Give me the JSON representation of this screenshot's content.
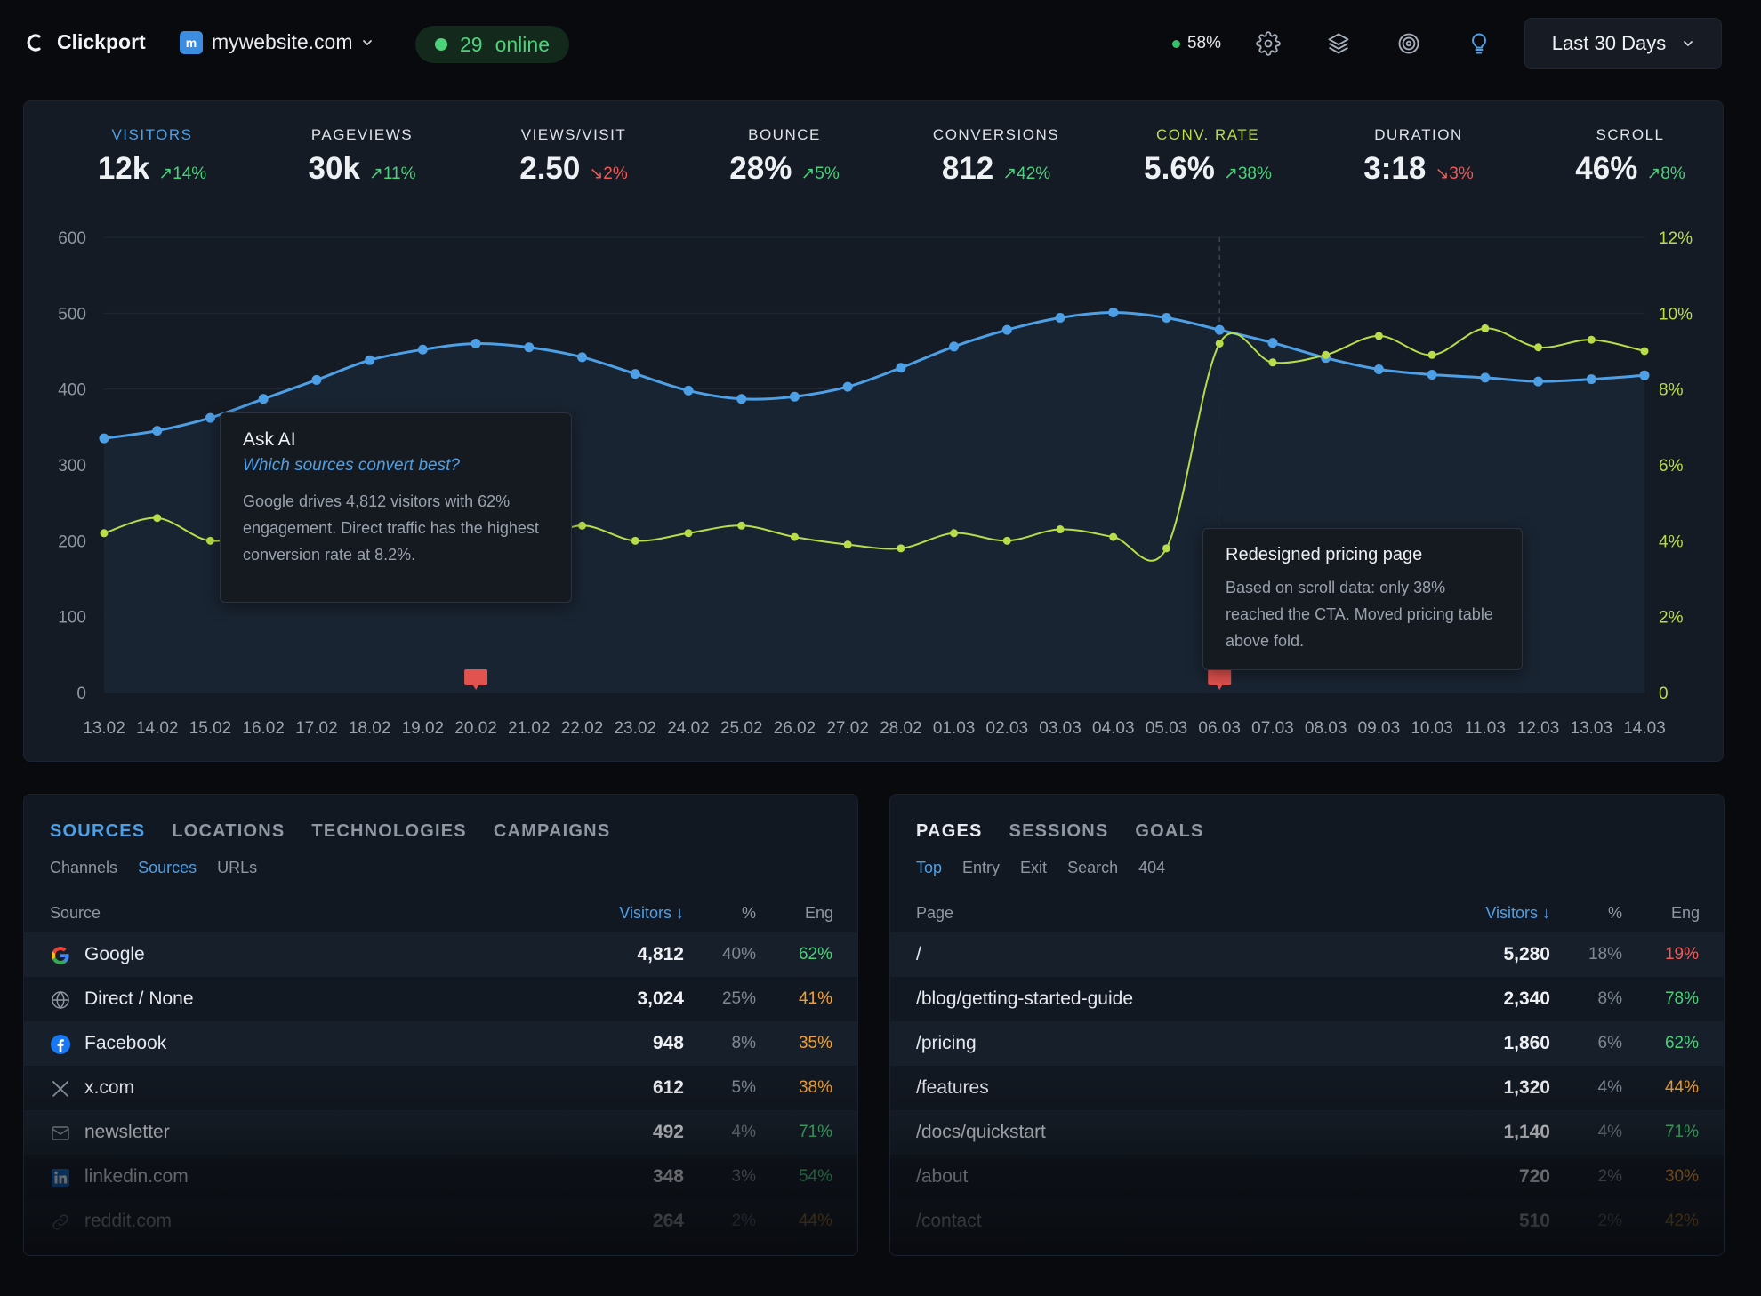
{
  "header": {
    "brand": "Clickport",
    "site": {
      "favicon_letter": "m",
      "name": "mywebsite.com"
    },
    "online": {
      "count": "29",
      "label": "online"
    },
    "indicator_pct": "58%",
    "icons": [
      "gear-icon",
      "layers-icon",
      "target-icon",
      "lightbulb-icon"
    ],
    "date_range": "Last 30 Days"
  },
  "metrics": [
    {
      "label": "VISITORS",
      "value": "12k",
      "delta": "↗14%",
      "trend": "up"
    },
    {
      "label": "PAGEVIEWS",
      "value": "30k",
      "delta": "↗11%",
      "trend": "up"
    },
    {
      "label": "VIEWS/VISIT",
      "value": "2.50",
      "delta": "↘2%",
      "trend": "down"
    },
    {
      "label": "BOUNCE",
      "value": "28%",
      "delta": "↗5%",
      "trend": "up"
    },
    {
      "label": "CONVERSIONS",
      "value": "812",
      "delta": "↗42%",
      "trend": "up"
    },
    {
      "label": "CONV. RATE",
      "value": "5.6%",
      "delta": "↗38%",
      "trend": "up"
    },
    {
      "label": "DURATION",
      "value": "3:18",
      "delta": "↘3%",
      "trend": "down"
    },
    {
      "label": "SCROLL",
      "value": "46%",
      "delta": "↗8%",
      "trend": "up"
    }
  ],
  "chart_data": {
    "type": "line",
    "x": [
      "13.02",
      "14.02",
      "15.02",
      "16.02",
      "17.02",
      "18.02",
      "19.02",
      "20.02",
      "21.02",
      "22.02",
      "23.02",
      "24.02",
      "25.02",
      "26.02",
      "27.02",
      "28.02",
      "01.03",
      "02.03",
      "03.03",
      "04.03",
      "05.03",
      "06.03",
      "07.03",
      "08.03",
      "09.03",
      "10.03",
      "11.03",
      "12.03",
      "13.03",
      "14.03"
    ],
    "y_left": {
      "ticks": [
        "0",
        "100",
        "200",
        "300",
        "400",
        "500",
        "600"
      ],
      "range": [
        0,
        600
      ]
    },
    "y_right": {
      "ticks": [
        "0",
        "2%",
        "4%",
        "6%",
        "8%",
        "10%",
        "12%"
      ],
      "range": [
        0,
        12
      ]
    },
    "series": [
      {
        "axis": "left",
        "color": "#4d9fe6",
        "values": [
          335,
          345,
          362,
          387,
          412,
          438,
          452,
          460,
          455,
          442,
          420,
          398,
          387,
          390,
          403,
          428,
          456,
          478,
          494,
          501,
          494,
          478,
          461,
          441,
          426,
          419,
          415,
          410,
          413,
          418
        ]
      },
      {
        "axis": "right",
        "color": "#b9dd49",
        "values": [
          4.2,
          4.6,
          4.0,
          4.3,
          4.9,
          4.6,
          4.8,
          4.4,
          4.0,
          4.4,
          4.0,
          4.2,
          4.4,
          4.1,
          3.9,
          3.8,
          4.2,
          4.0,
          4.3,
          4.1,
          3.8,
          9.2,
          8.7,
          8.9,
          9.4,
          8.9,
          9.6,
          9.1,
          9.3,
          9.0
        ]
      }
    ],
    "highlight_x": "06.03",
    "markers": [
      "20.02",
      "06.03"
    ]
  },
  "ai_tooltip": {
    "title": "Ask AI",
    "question": "Which sources convert best?",
    "answer": "Google drives 4,812 visitors with 62% engagement. Direct traffic has the highest conversion rate at 8.2%."
  },
  "note_tooltip": {
    "title": "Redesigned pricing page",
    "body": "Based on scroll data: only 38% reached the CTA. Moved pricing table above fold."
  },
  "sources_panel": {
    "tabs": [
      "SOURCES",
      "LOCATIONS",
      "TECHNOLOGIES",
      "CAMPAIGNS"
    ],
    "subtabs": [
      "Channels",
      "Sources",
      "URLs"
    ],
    "headers": {
      "name": "Source",
      "visitors": "Visitors ↓",
      "pct": "%",
      "eng": "Eng"
    },
    "rows": [
      {
        "icon": "google-icon",
        "name": "Google",
        "visitors": "4,812",
        "pct": "40%",
        "eng": "62%",
        "eng_color": "green"
      },
      {
        "icon": "globe-icon",
        "name": "Direct / None",
        "visitors": "3,024",
        "pct": "25%",
        "eng": "41%",
        "eng_color": "orange"
      },
      {
        "icon": "facebook-icon",
        "name": "Facebook",
        "visitors": "948",
        "pct": "8%",
        "eng": "35%",
        "eng_color": "orange"
      },
      {
        "icon": "x-icon",
        "name": "x.com",
        "visitors": "612",
        "pct": "5%",
        "eng": "38%",
        "eng_color": "orange"
      },
      {
        "icon": "mail-icon",
        "name": "newsletter",
        "visitors": "492",
        "pct": "4%",
        "eng": "71%",
        "eng_color": "green"
      },
      {
        "icon": "linkedin-icon",
        "name": "linkedin.com",
        "visitors": "348",
        "pct": "3%",
        "eng": "54%",
        "eng_color": "green"
      },
      {
        "icon": "link-icon",
        "name": "reddit.com",
        "visitors": "264",
        "pct": "2%",
        "eng": "44%",
        "eng_color": "orange"
      }
    ]
  },
  "pages_panel": {
    "tabs": [
      "PAGES",
      "SESSIONS",
      "GOALS"
    ],
    "subtabs": [
      "Top",
      "Entry",
      "Exit",
      "Search",
      "404"
    ],
    "headers": {
      "name": "Page",
      "visitors": "Visitors ↓",
      "pct": "%",
      "eng": "Eng"
    },
    "rows": [
      {
        "name": "/",
        "visitors": "5,280",
        "pct": "18%",
        "eng": "19%",
        "eng_color": "red"
      },
      {
        "name": "/blog/getting-started-guide",
        "visitors": "2,340",
        "pct": "8%",
        "eng": "78%",
        "eng_color": "green"
      },
      {
        "name": "/pricing",
        "visitors": "1,860",
        "pct": "6%",
        "eng": "62%",
        "eng_color": "green"
      },
      {
        "name": "/features",
        "visitors": "1,320",
        "pct": "4%",
        "eng": "44%",
        "eng_color": "orange"
      },
      {
        "name": "/docs/quickstart",
        "visitors": "1,140",
        "pct": "4%",
        "eng": "71%",
        "eng_color": "green"
      },
      {
        "name": "/about",
        "visitors": "720",
        "pct": "2%",
        "eng": "30%",
        "eng_color": "orange"
      },
      {
        "name": "/contact",
        "visitors": "510",
        "pct": "2%",
        "eng": "42%",
        "eng_color": "orange"
      }
    ]
  }
}
